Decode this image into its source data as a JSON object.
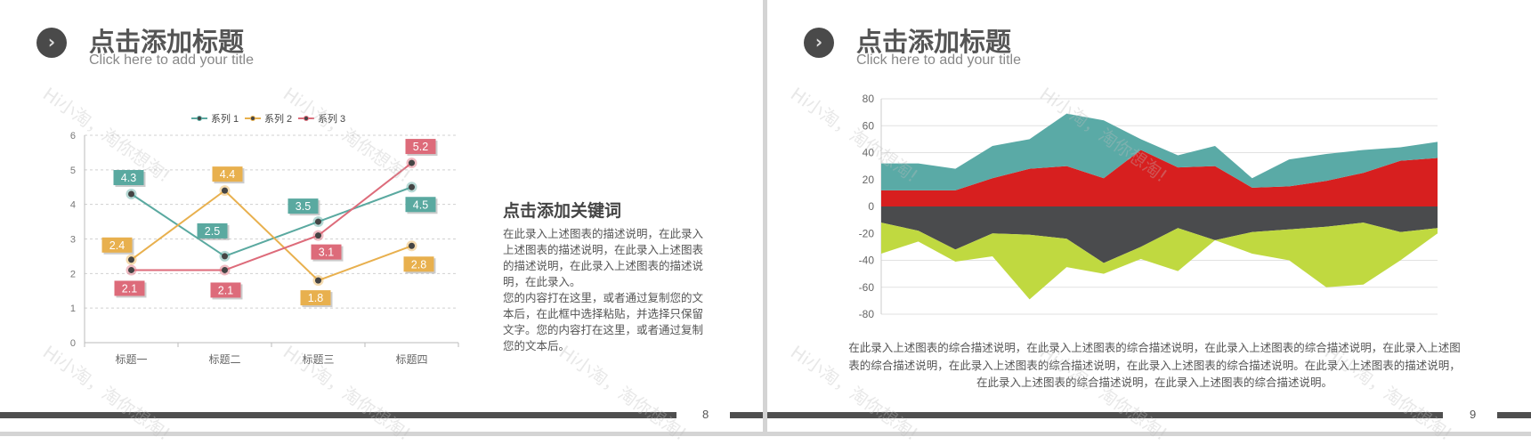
{
  "watermark": "Hi小淘，淘你想淘!",
  "slides": [
    {
      "page": "8",
      "title": "点击添加标题",
      "subtitle": "Click here to add your title",
      "icon": "chevron-right-icon",
      "keyword_title": "点击添加关键词",
      "keyword_lines": [
        "在此录入上述图表的描述说明，在此录入",
        "上述图表的描述说明，在此录入上述图表",
        "的描述说明，在此录入上述图表的描述说",
        "明，在此录入。",
        "您的内容打在这里，或者通过复制您的文",
        "本后，在此框中选择粘贴，并选择只保留",
        "文字。您的内容打在这里，或者通过复制",
        "您的文本后。"
      ]
    },
    {
      "page": "9",
      "title": "点击添加标题",
      "subtitle": "Click here to add your title",
      "icon": "chevron-right-icon",
      "description_lines": [
        "在此录入上述图表的综合描述说明，在此录入上述图表的综合描述说明，在此录入上述图表的综合描述说明，在此录入上述图",
        "表的综合描述说明，在此录入上述图表的综合描述说明，在此录入上述图表的综合描述说明。在此录入上述图表的描述说明，",
        "在此录入上述图表的综合描述说明，在此录入上述图表的综合描述说明。"
      ]
    }
  ],
  "chart_data": [
    {
      "type": "line",
      "categories": [
        "标题一",
        "标题二",
        "标题三",
        "标题四"
      ],
      "ylim": [
        0,
        6
      ],
      "yticks": [
        0,
        1,
        2,
        3,
        4,
        5,
        6
      ],
      "grid": true,
      "legend": "top",
      "series": [
        {
          "name": "系列 1",
          "values": [
            4.3,
            2.5,
            3.5,
            4.5
          ],
          "color": "#5aa9a0"
        },
        {
          "name": "系列 2",
          "values": [
            2.4,
            4.4,
            1.8,
            2.8
          ],
          "color": "#e8b04e"
        },
        {
          "name": "系列 3",
          "values": [
            2.1,
            2.1,
            3.1,
            5.2
          ],
          "color": "#dd6b7a"
        }
      ]
    },
    {
      "type": "area",
      "stacked": true,
      "ylim": [
        -80,
        80
      ],
      "yticks": [
        80,
        60,
        40,
        20,
        0,
        -20,
        -40,
        -60,
        -80
      ],
      "grid": true,
      "x": [
        1,
        2,
        3,
        4,
        5,
        6,
        7,
        8,
        9,
        10,
        11,
        12,
        13,
        14,
        15,
        16
      ],
      "series": [
        {
          "values": [
            12,
            12,
            12,
            21,
            28,
            30,
            21,
            42,
            29,
            30,
            14,
            15,
            19,
            25,
            34,
            36
          ],
          "color": "#d71f1f"
        },
        {
          "values": [
            20,
            20,
            16,
            24,
            22,
            39,
            43,
            8,
            9,
            15,
            7,
            20,
            20,
            17,
            10,
            12
          ],
          "color": "#5aaaa6"
        },
        {
          "values": [
            -12,
            -18,
            -32,
            -20,
            -21,
            -24,
            -42,
            -30,
            -16,
            -25,
            -19,
            -17,
            -15,
            -12,
            -19,
            -16
          ],
          "color": "#4a4b4d"
        },
        {
          "values": [
            -23,
            -8,
            -9,
            -17,
            -48,
            -21,
            -8,
            -9,
            -32,
            0,
            -16,
            -23,
            -45,
            -46,
            -21,
            -4
          ],
          "color": "#c0d940"
        }
      ]
    }
  ]
}
